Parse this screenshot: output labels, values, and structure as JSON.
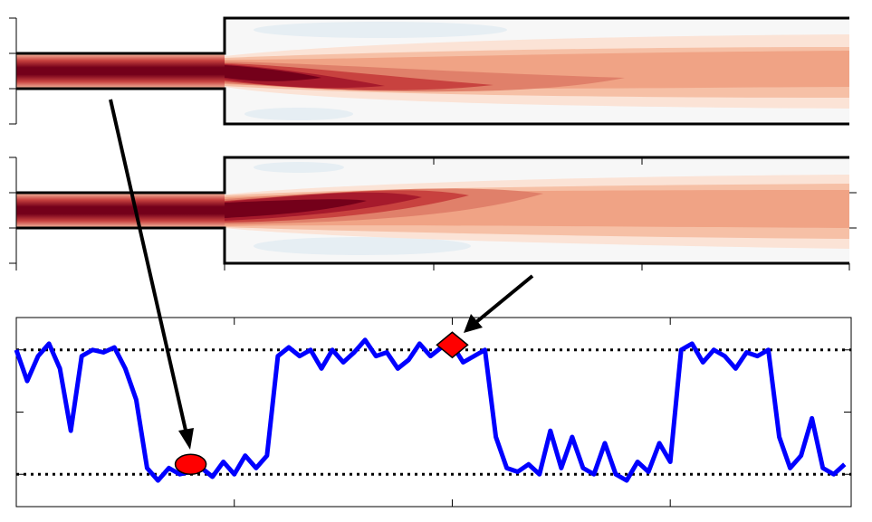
{
  "chart_data": {
    "type": "line",
    "x": [
      0,
      0.05,
      0.1,
      0.15,
      0.2,
      0.25,
      0.3,
      0.35,
      0.4,
      0.45,
      0.5,
      0.55,
      0.6,
      0.65,
      0.7,
      0.75,
      0.8,
      0.85,
      0.9,
      0.95,
      1.0,
      1.05,
      1.1,
      1.15,
      1.2,
      1.25,
      1.3,
      1.35,
      1.4,
      1.45,
      1.5,
      1.55,
      1.6,
      1.65,
      1.7,
      1.75,
      1.8,
      1.85,
      1.9,
      1.95,
      2.0,
      2.05,
      2.1,
      2.15,
      2.2,
      2.25,
      2.3,
      2.35,
      2.4,
      2.45,
      2.5,
      2.55,
      2.6,
      2.65,
      2.7,
      2.75,
      2.8,
      2.85,
      2.9,
      2.95,
      3.0,
      3.05,
      3.1,
      3.15,
      3.2,
      3.25,
      3.3,
      3.35,
      3.4,
      3.45,
      3.5,
      3.55,
      3.6,
      3.65,
      3.7,
      3.75,
      3.8
    ],
    "values": [
      1.0,
      0.75,
      0.95,
      1.05,
      0.85,
      0.35,
      0.95,
      1.0,
      0.98,
      1.02,
      0.85,
      0.6,
      0.05,
      -0.05,
      0.05,
      0.0,
      0.02,
      0.05,
      -0.02,
      0.1,
      0.0,
      0.15,
      0.05,
      0.15,
      0.95,
      1.02,
      0.95,
      1.0,
      0.85,
      1.0,
      0.9,
      0.98,
      1.08,
      0.95,
      0.98,
      0.85,
      0.92,
      1.05,
      0.95,
      1.02,
      1.04,
      0.9,
      0.95,
      1.0,
      0.3,
      0.05,
      0.02,
      0.08,
      0.0,
      0.35,
      0.05,
      0.3,
      0.05,
      0.0,
      0.25,
      0.0,
      -0.05,
      0.1,
      0.02,
      0.25,
      0.1,
      1.0,
      1.05,
      0.9,
      1.0,
      0.95,
      0.85,
      0.98,
      0.95,
      1.0,
      0.3,
      0.05,
      0.15,
      0.45,
      0.05,
      0.0,
      0.08
    ],
    "color": "#0000ff",
    "xlim": [
      0,
      3.83
    ],
    "xticks": [
      1,
      2,
      3
    ],
    "ylim": [
      -0.26,
      1.26
    ],
    "yticks": [
      0,
      0.5,
      1
    ],
    "hlines": [
      0,
      1
    ],
    "markers": [
      {
        "x": 0.8,
        "y": 0.08,
        "shape": "ellipse"
      },
      {
        "x": 2.0,
        "y": 1.04,
        "shape": "diamond"
      }
    ],
    "marker_color": "#ff0000"
  }
}
